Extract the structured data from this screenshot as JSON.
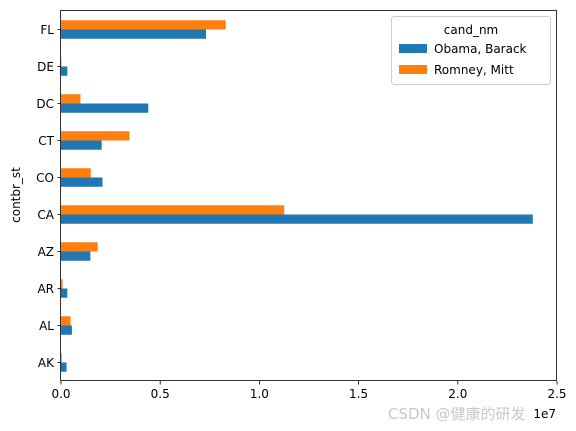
{
  "chart_data": {
    "type": "bar",
    "orientation": "horizontal",
    "categories": [
      "AK",
      "AL",
      "AR",
      "AZ",
      "CA",
      "CO",
      "CT",
      "DC",
      "DE",
      "FL"
    ],
    "series": [
      {
        "name": "Obama, Barack",
        "color": "#1f77b4",
        "values": [
          0.028,
          0.055,
          0.032,
          0.148,
          2.378,
          0.209,
          0.205,
          0.44,
          0.032,
          0.731
        ]
      },
      {
        "name": "Romney, Mitt",
        "color": "#ff7f0e",
        "values": [
          0.004,
          0.048,
          0.008,
          0.185,
          1.125,
          0.15,
          0.345,
          0.098,
          0.002,
          0.83
        ]
      }
    ],
    "xlabel": "",
    "ylabel": "contbr_st",
    "xlim": [
      0,
      2.5
    ],
    "xticks": [
      "0.0",
      "0.5",
      "1.0",
      "1.5",
      "2.0",
      "2.5"
    ],
    "xtick_values": [
      0,
      0.5,
      1.0,
      1.5,
      2.0,
      2.5
    ],
    "x_offset_text": "1e7",
    "legend_title": "cand_nm",
    "legend_position": "top-right",
    "grid": false
  },
  "watermark": "CSDN @健康的研发"
}
